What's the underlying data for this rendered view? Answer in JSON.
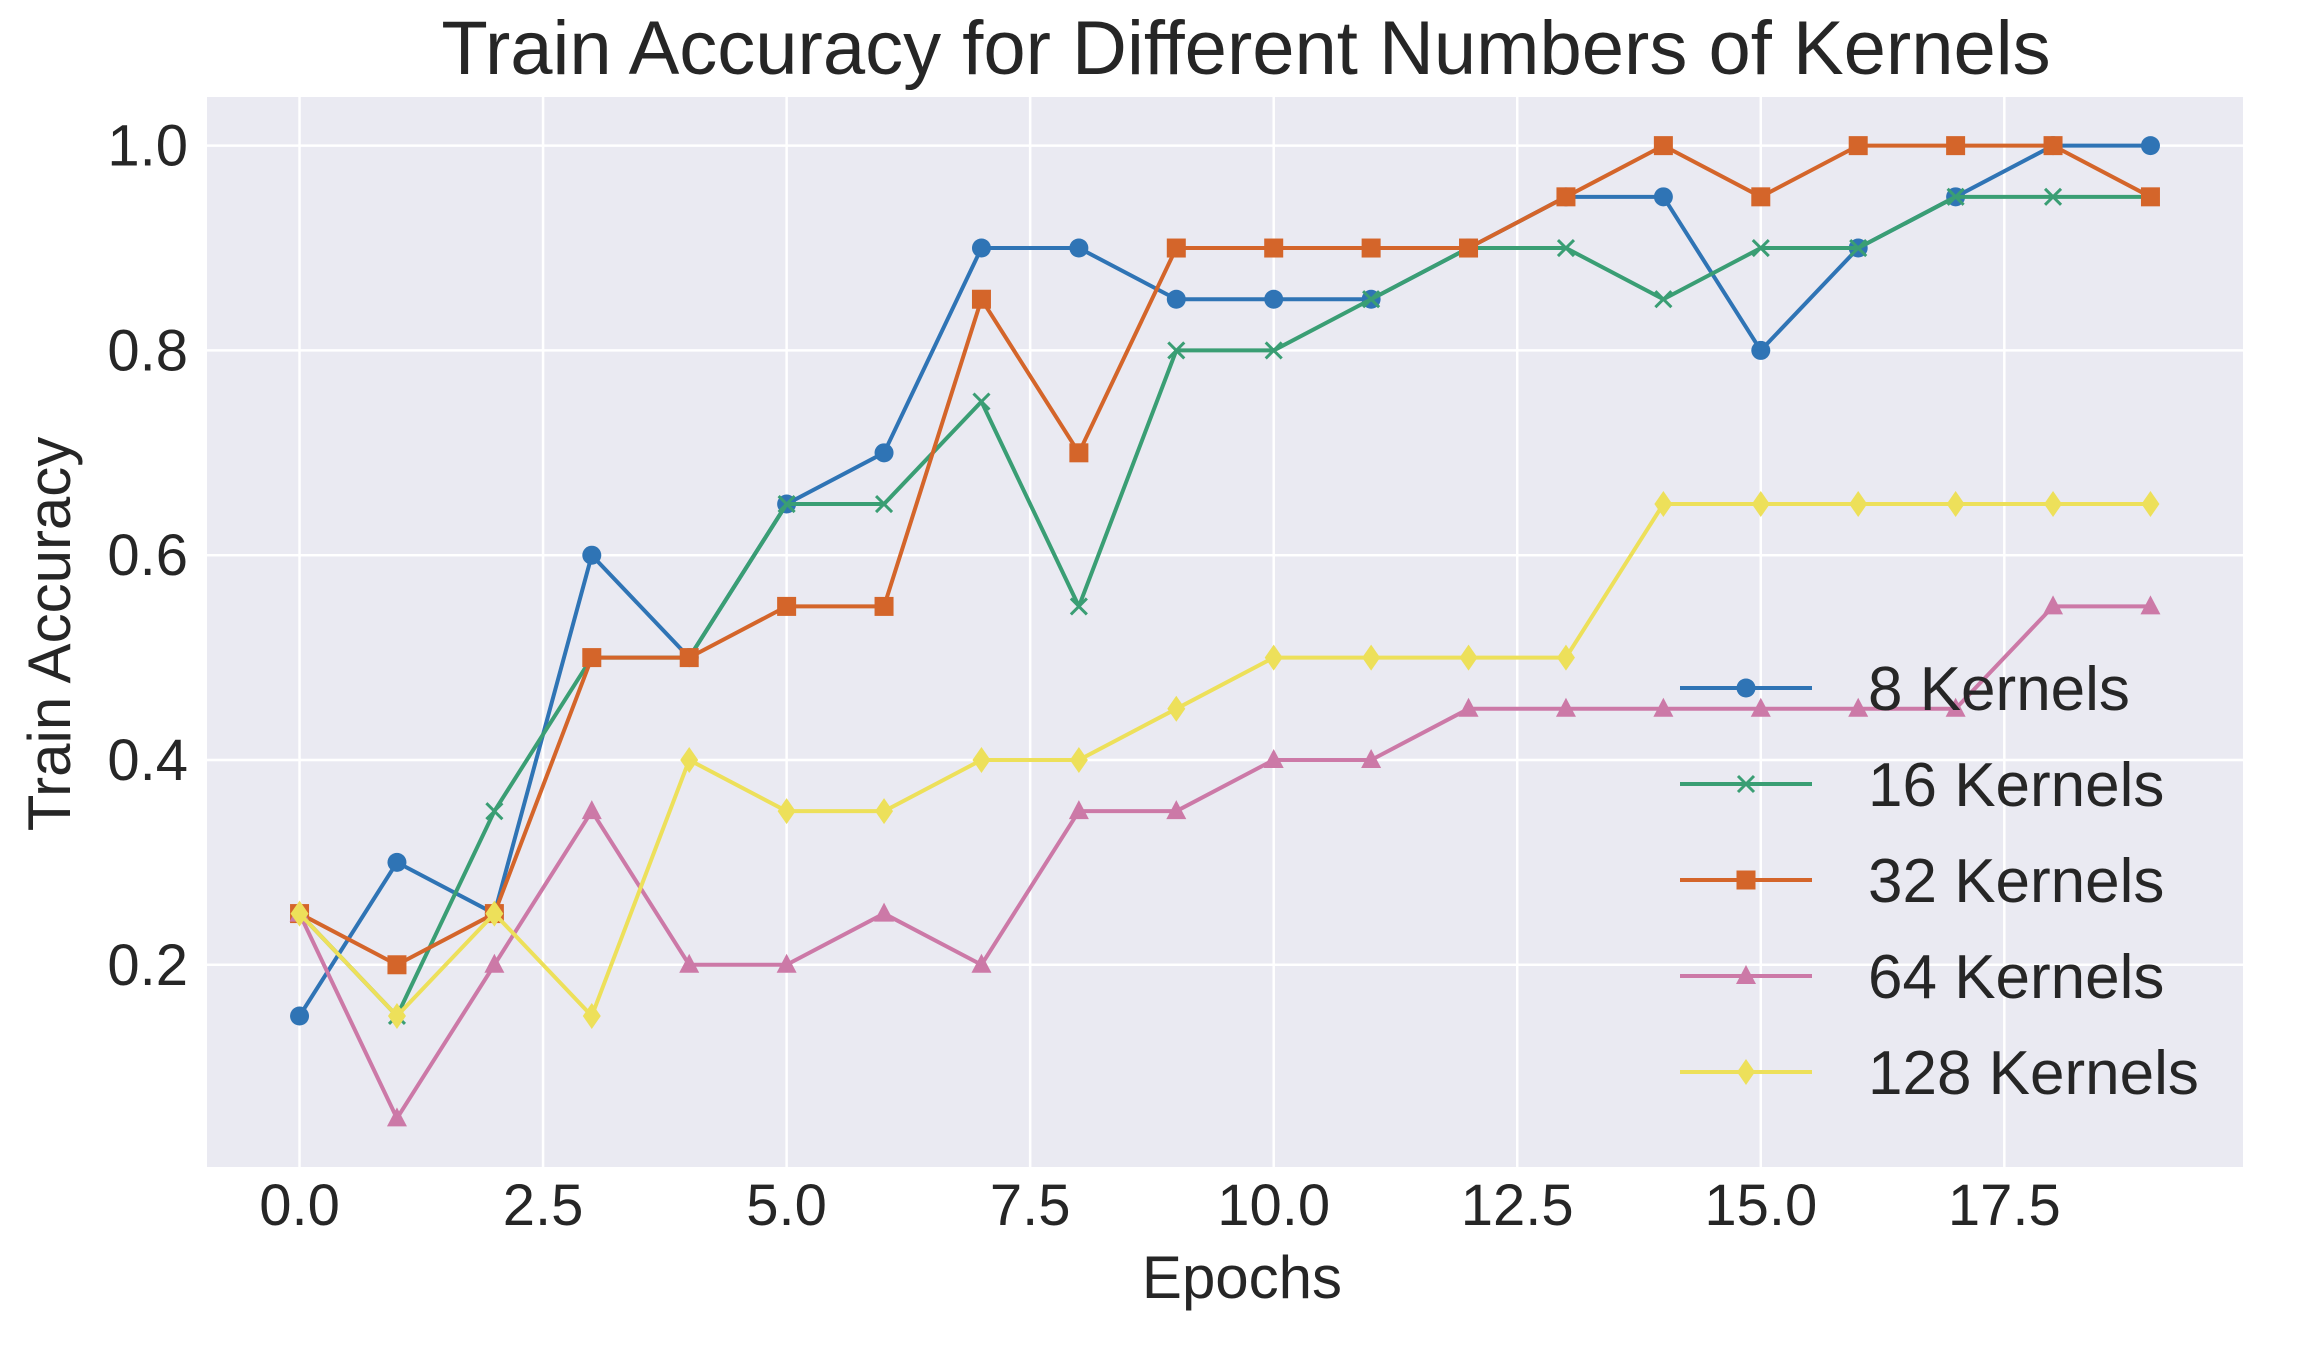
{
  "chart_data": {
    "type": "line",
    "title": "Train Accuracy for Different Numbers of Kernels",
    "xlabel": "Epochs",
    "ylabel": "Train Accuracy",
    "xlim": [
      -0.95,
      19.95
    ],
    "ylim": [
      0.0025,
      1.0475
    ],
    "xticks": [
      0.0,
      2.5,
      5.0,
      7.5,
      10.0,
      12.5,
      15.0,
      17.5
    ],
    "xtick_labels": [
      "0.0",
      "2.5",
      "5.0",
      "7.5",
      "10.0",
      "12.5",
      "15.0",
      "17.5"
    ],
    "yticks": [
      0.2,
      0.4,
      0.6,
      0.8,
      1.0
    ],
    "ytick_labels": [
      "0.2",
      "0.4",
      "0.6",
      "0.8",
      "1.0"
    ],
    "grid": true,
    "legend_position": "right",
    "x": [
      0,
      1,
      2,
      3,
      4,
      5,
      6,
      7,
      8,
      9,
      10,
      11,
      12,
      13,
      14,
      15,
      16,
      17,
      18,
      19
    ],
    "series": [
      {
        "name": "8 Kernels",
        "color": "#2f74b5",
        "marker": "circle",
        "values": [
          0.15,
          0.3,
          0.25,
          0.6,
          0.5,
          0.65,
          0.7,
          0.9,
          0.9,
          0.85,
          0.85,
          0.85,
          0.9,
          0.95,
          0.95,
          0.8,
          0.9,
          0.95,
          1.0,
          1.0
        ]
      },
      {
        "name": "16 Kernels",
        "color": "#3a9e74",
        "marker": "x",
        "values": [
          0.25,
          0.15,
          0.35,
          0.5,
          0.5,
          0.65,
          0.65,
          0.75,
          0.55,
          0.8,
          0.8,
          0.85,
          0.9,
          0.9,
          0.85,
          0.9,
          0.9,
          0.95,
          0.95,
          0.95
        ]
      },
      {
        "name": "32 Kernels",
        "color": "#d4652a",
        "marker": "square",
        "values": [
          0.25,
          0.2,
          0.25,
          0.5,
          0.5,
          0.55,
          0.55,
          0.85,
          0.7,
          0.9,
          0.9,
          0.9,
          0.9,
          0.95,
          1.0,
          0.95,
          1.0,
          1.0,
          1.0,
          0.95
        ]
      },
      {
        "name": "64 Kernels",
        "color": "#cc79a7",
        "marker": "triangle",
        "values": [
          0.25,
          0.05,
          0.2,
          0.35,
          0.2,
          0.2,
          0.25,
          0.2,
          0.35,
          0.35,
          0.4,
          0.4,
          0.45,
          0.45,
          0.45,
          0.45,
          0.45,
          0.45,
          0.55,
          0.55
        ]
      },
      {
        "name": "128 Kernels",
        "color": "#ede05a",
        "marker": "diamond",
        "values": [
          0.25,
          0.15,
          0.25,
          0.15,
          0.4,
          0.35,
          0.35,
          0.4,
          0.4,
          0.45,
          0.5,
          0.5,
          0.5,
          0.5,
          0.65,
          0.65,
          0.65,
          0.65,
          0.65,
          0.65
        ]
      }
    ]
  }
}
